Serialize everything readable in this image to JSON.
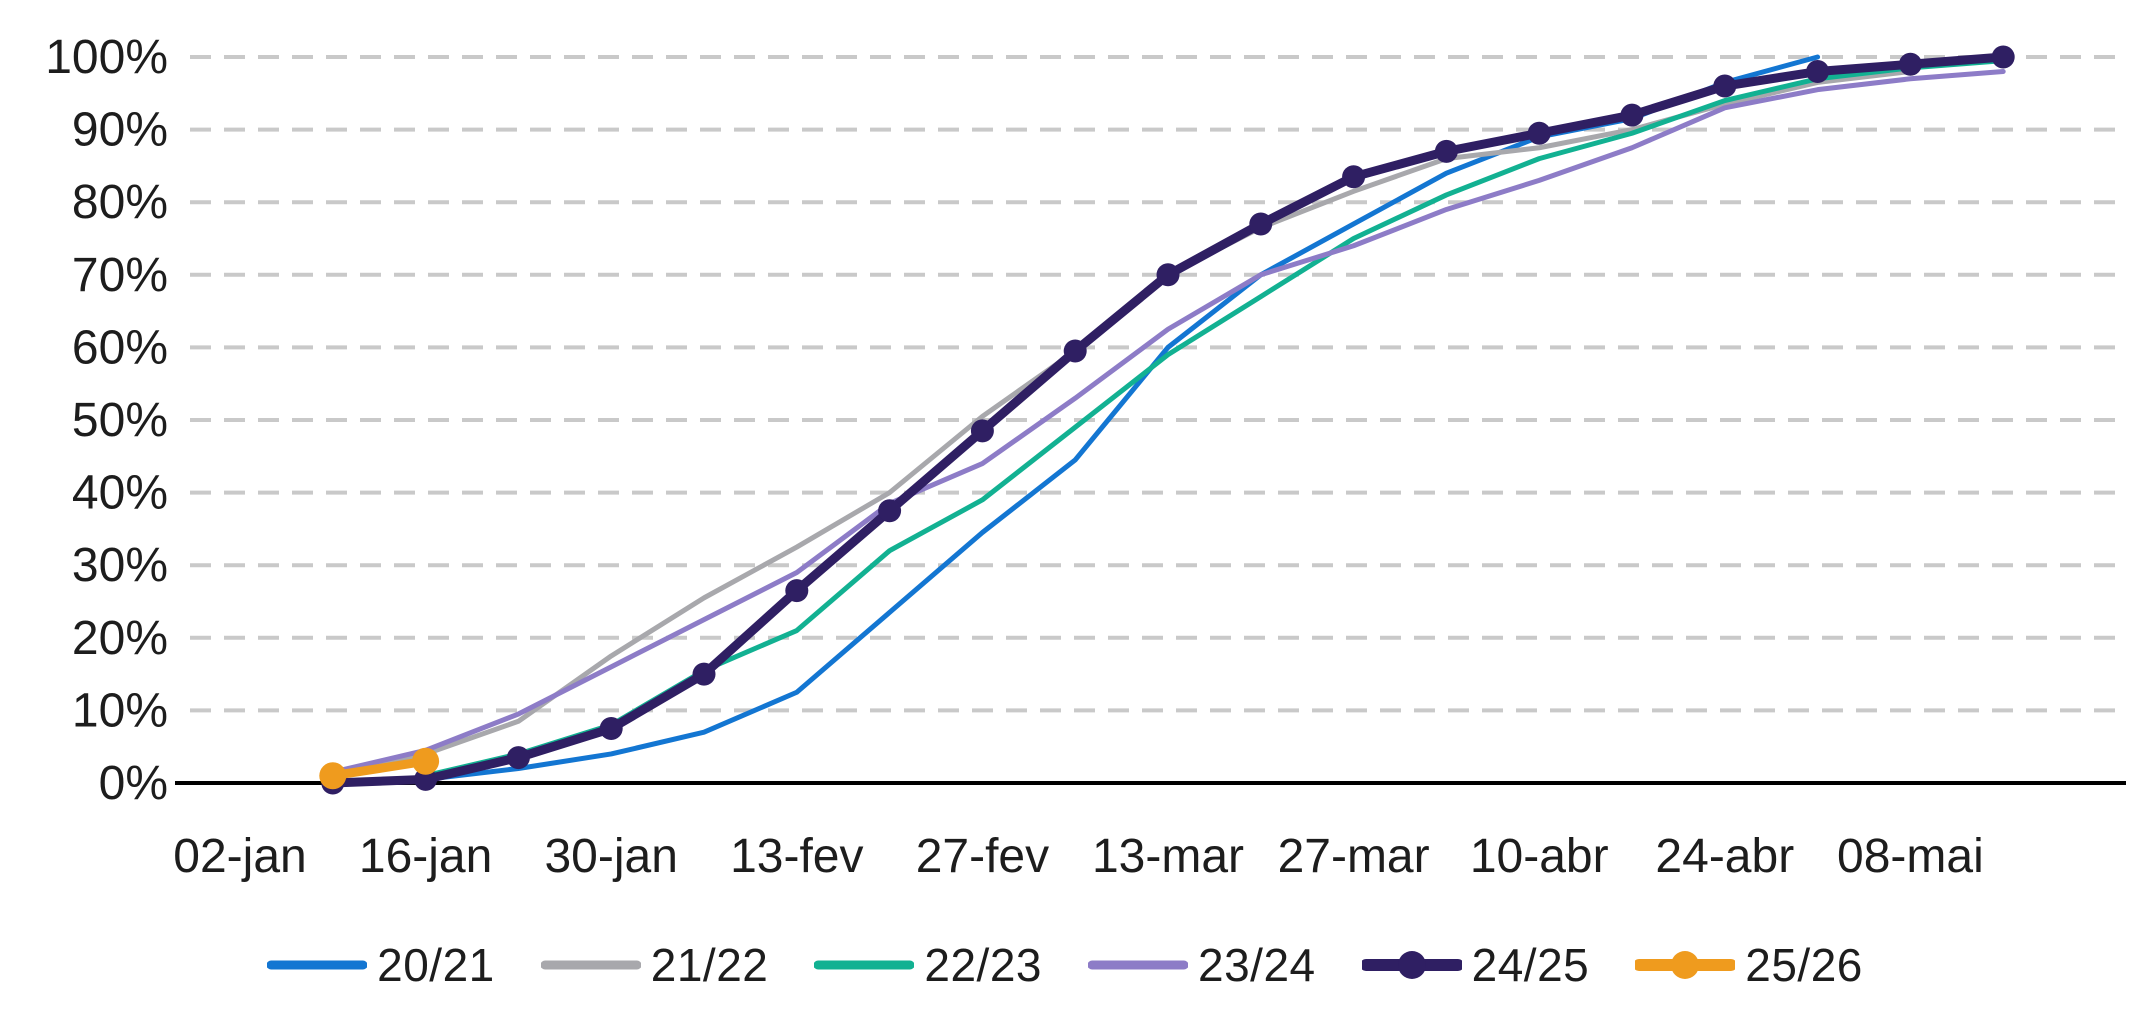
{
  "chart_data": {
    "type": "line",
    "title": "",
    "xlabel": "",
    "ylabel": "",
    "ylim": [
      0,
      100
    ],
    "grid": {
      "on": true,
      "color": "#c9c9c9",
      "dash": "21 13"
    },
    "axis_color": "#000000",
    "text_color": "#1d1d1d",
    "legend_position": "bottom",
    "y_tick_labels": [
      "0%",
      "10%",
      "20%",
      "30%",
      "40%",
      "50%",
      "60%",
      "70%",
      "80%",
      "90%",
      "100%"
    ],
    "x_tick_labels": [
      "02-jan",
      "16-jan",
      "30-jan",
      "13-fev",
      "27-fev",
      "13-mar",
      "27-mar",
      "10-abr",
      "24-abr",
      "08-mai"
    ],
    "x_tick_weeks": [
      0,
      2,
      4,
      6,
      8,
      10,
      12,
      14,
      16,
      18
    ],
    "weeks": [
      "02-jan",
      "09-jan",
      "16-jan",
      "23-jan",
      "30-jan",
      "06-fev",
      "13-fev",
      "20-fev",
      "27-fev",
      "06-mar",
      "13-mar",
      "20-mar",
      "27-mar",
      "03-abr",
      "10-abr",
      "17-abr",
      "24-abr",
      "01-mai",
      "08-mai",
      "15-mai"
    ],
    "value_unit": "%",
    "series": [
      {
        "name": "20/21",
        "color": "#1376d2",
        "marker": false,
        "line_width": 5,
        "marker_r": 0,
        "start_week": 2,
        "values": [
          0.5,
          2,
          4,
          7,
          12.5,
          23.5,
          34.5,
          44.5,
          60,
          70,
          77,
          84,
          89,
          91.5,
          96.5,
          100
        ]
      },
      {
        "name": "21/22",
        "color": "#a8a8ac",
        "marker": false,
        "line_width": 5,
        "marker_r": 0,
        "start_week": 1,
        "values": [
          1.5,
          4,
          8.5,
          17.5,
          25.5,
          32.5,
          40,
          50.5,
          59.5,
          70,
          76.5,
          81.5,
          86,
          87.5,
          90,
          93.5,
          96.5,
          98
        ]
      },
      {
        "name": "22/23",
        "color": "#12b192",
        "marker": false,
        "line_width": 5,
        "marker_r": 0,
        "start_week": 2,
        "values": [
          1,
          4,
          8,
          15.5,
          21,
          32,
          39,
          49,
          59,
          67,
          75,
          81,
          86,
          89.5,
          94,
          97,
          98.5,
          99.5
        ]
      },
      {
        "name": "23/24",
        "color": "#8d7cc7",
        "marker": false,
        "line_width": 5,
        "marker_r": 0,
        "start_week": 1,
        "values": [
          1.5,
          4.5,
          9.5,
          16,
          22.5,
          29,
          38.5,
          44,
          53,
          62.5,
          70,
          74,
          79,
          83,
          87.5,
          93,
          95.5,
          97,
          98
        ]
      },
      {
        "name": "24/25",
        "color": "#2f1f63",
        "marker": true,
        "line_width": 9,
        "marker_r": 11.5,
        "start_week": 1,
        "values": [
          0,
          0.5,
          3.5,
          7.5,
          15,
          26.5,
          37.5,
          48.5,
          59.5,
          70,
          77,
          83.5,
          87,
          89.5,
          92,
          96,
          98,
          99,
          100
        ]
      },
      {
        "name": "25/26",
        "color": "#ef9b1e",
        "marker": true,
        "line_width": 9,
        "marker_r": 13.5,
        "start_week": 1,
        "values": [
          1,
          3
        ]
      }
    ]
  }
}
